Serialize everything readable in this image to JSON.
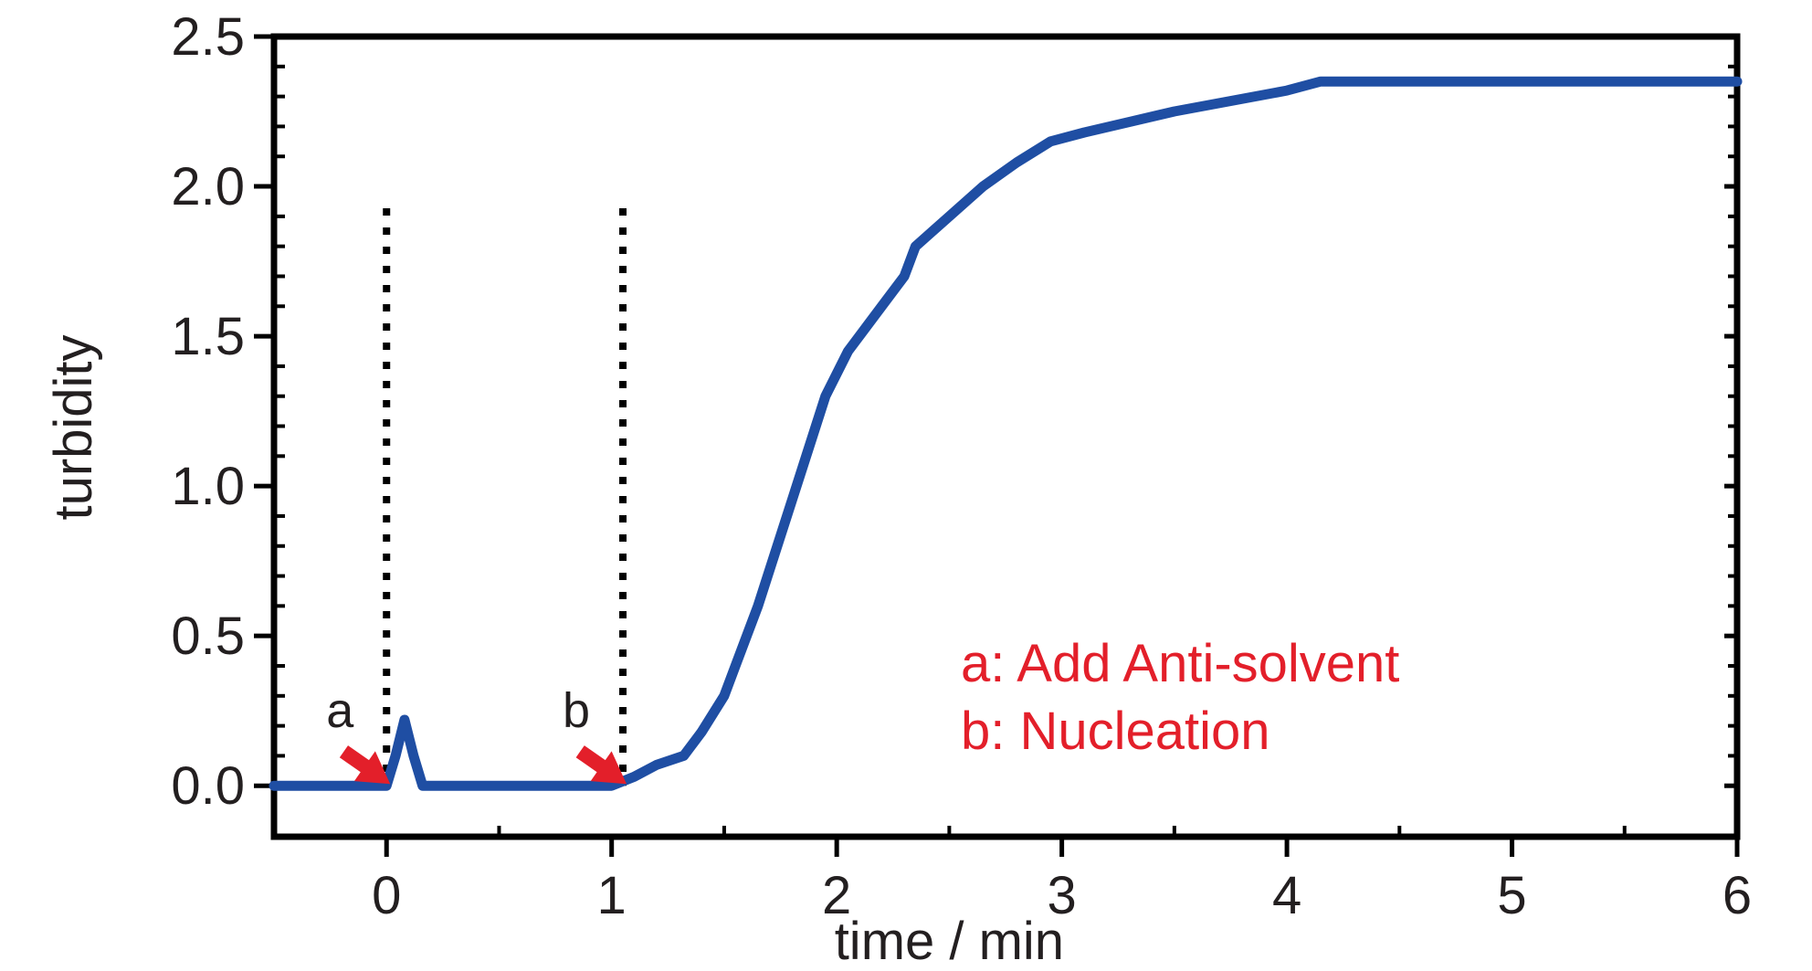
{
  "chart_data": {
    "type": "line",
    "xlabel": "time / min",
    "ylabel": "turbidity",
    "xlim": [
      -0.5,
      6
    ],
    "ylim": [
      -0.17,
      2.5
    ],
    "x_ticks": [
      0,
      1,
      2,
      3,
      4,
      5,
      6
    ],
    "x_tick_labels": [
      "0",
      "1",
      "2",
      "3",
      "4",
      "5",
      "6"
    ],
    "y_ticks": [
      0.0,
      0.5,
      1.0,
      1.5,
      2.0,
      2.5
    ],
    "y_tick_labels": [
      "0.0",
      "0.5",
      "1.0",
      "1.5",
      "2.0",
      "2.5"
    ],
    "grid": false,
    "line_color": "#1f4ea3",
    "annotation_color": "#e31f2a",
    "series": [
      {
        "x": [
          -0.5,
          0.0,
          0.04,
          0.08,
          0.12,
          0.16,
          1.0,
          1.1,
          1.2,
          1.32,
          1.4,
          1.5,
          1.55,
          1.65,
          1.8,
          1.95,
          2.05,
          2.2,
          2.3,
          2.35,
          2.5,
          2.65,
          2.8,
          2.95,
          3.1,
          3.5,
          4.0,
          4.15,
          5.0,
          6.0
        ],
        "y": [
          0.0,
          0.0,
          0.1,
          0.22,
          0.1,
          0.0,
          0.0,
          0.03,
          0.07,
          0.1,
          0.18,
          0.3,
          0.4,
          0.6,
          0.95,
          1.3,
          1.45,
          1.6,
          1.7,
          1.8,
          1.9,
          2.0,
          2.08,
          2.15,
          2.18,
          2.25,
          2.32,
          2.35,
          2.35,
          2.35
        ]
      }
    ],
    "markers": [
      {
        "letter": "a",
        "x": 0.0
      },
      {
        "letter": "b",
        "x": 1.05
      }
    ],
    "legend": [
      "a: Add Anti-solvent",
      "b: Nucleation"
    ],
    "legend_position": "bottom-right"
  }
}
